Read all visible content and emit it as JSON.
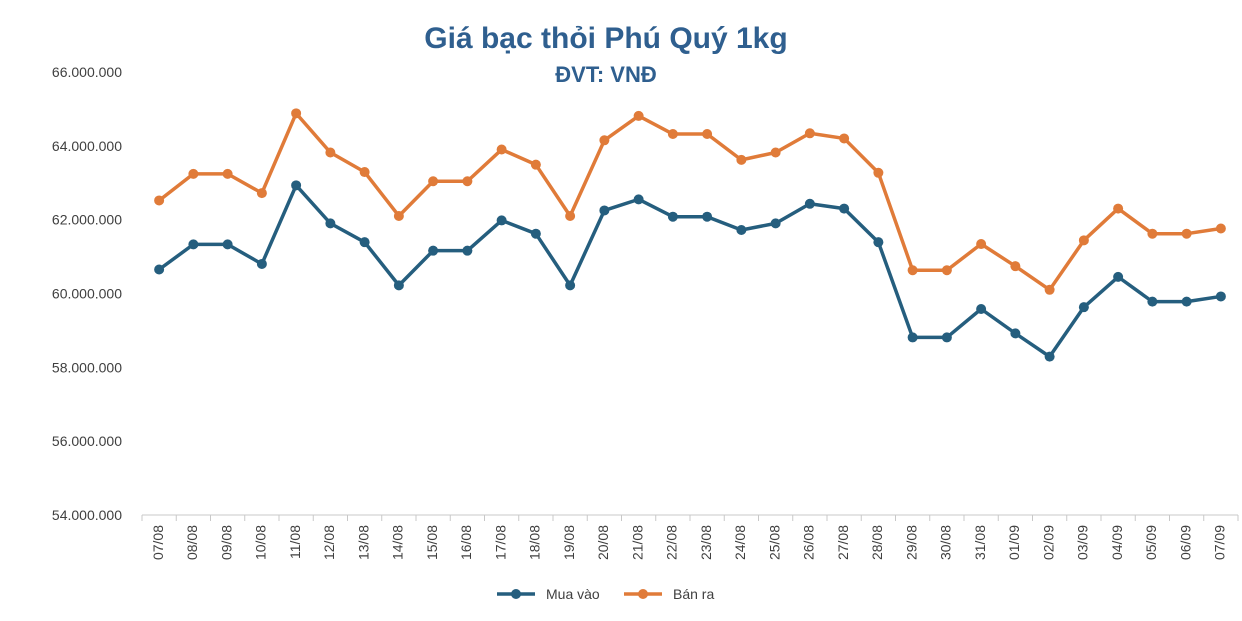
{
  "chart_data": {
    "type": "line",
    "title": "Giá bạc thỏi Phú Quý 1kg",
    "subtitle": "ĐVT: VNĐ",
    "categories": [
      "07/08",
      "08/08",
      "09/08",
      "10/08",
      "11/08",
      "12/08",
      "13/08",
      "14/08",
      "15/08",
      "16/08",
      "17/08",
      "18/08",
      "19/08",
      "20/08",
      "21/08",
      "22/08",
      "23/08",
      "24/08",
      "25/08",
      "26/08",
      "27/08",
      "28/08",
      "29/08",
      "30/08",
      "31/08",
      "01/09",
      "02/09",
      "03/09",
      "04/09",
      "05/09",
      "06/09",
      "07/09"
    ],
    "series": [
      {
        "name": "Mua vào",
        "color": "#255e7e",
        "values": [
          60650000,
          61330000,
          61330000,
          60800000,
          62930000,
          61900000,
          61390000,
          60220000,
          61160000,
          61160000,
          61980000,
          61620000,
          60220000,
          62250000,
          62550000,
          62080000,
          62080000,
          61720000,
          61900000,
          62430000,
          62300000,
          61390000,
          58810000,
          58810000,
          59580000,
          58920000,
          58290000,
          59630000,
          60450000,
          59780000,
          59780000,
          59920000
        ]
      },
      {
        "name": "Bán ra",
        "color": "#e07b39",
        "values": [
          62520000,
          63240000,
          63240000,
          62720000,
          64880000,
          63820000,
          63290000,
          62100000,
          63040000,
          63040000,
          63900000,
          63490000,
          62100000,
          64150000,
          64810000,
          64320000,
          64320000,
          63620000,
          63820000,
          64340000,
          64200000,
          63270000,
          60630000,
          60630000,
          61340000,
          60740000,
          60100000,
          61440000,
          62300000,
          61620000,
          61620000,
          61760000
        ]
      }
    ],
    "yticks": [
      "54.000.000",
      "56.000.000",
      "58.000.000",
      "60.000.000",
      "62.000.000",
      "64.000.000",
      "66.000.000"
    ],
    "ylim": [
      54000000,
      66000000
    ],
    "grid": false,
    "legend": "bottom"
  }
}
